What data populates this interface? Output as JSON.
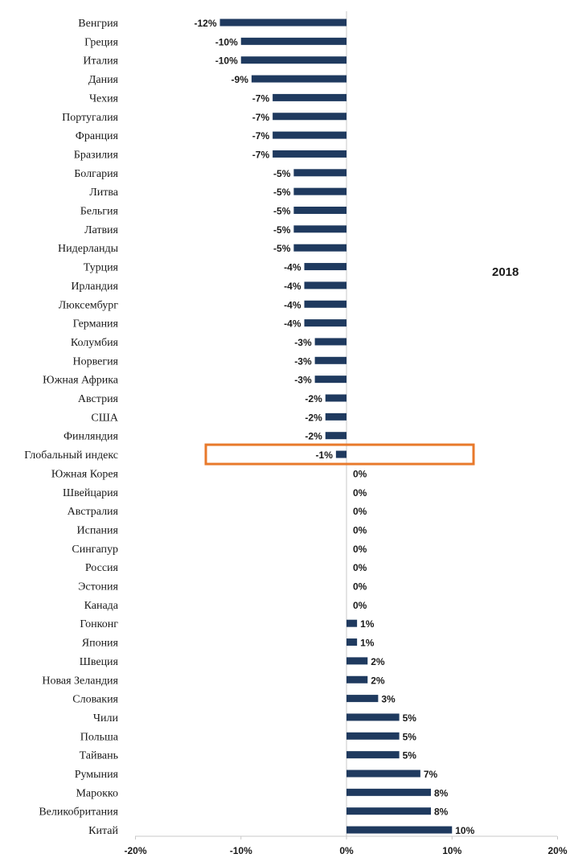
{
  "colors": {
    "bar": "#1f3a5f",
    "highlight_border": "#e8792b",
    "axis": "#c8c8c8",
    "background": "#ffffff"
  },
  "chart_data": {
    "type": "bar",
    "orientation": "horizontal",
    "title": "2018",
    "xlim": [
      -20,
      20
    ],
    "x_ticks": [
      -20,
      -10,
      0,
      10,
      20
    ],
    "x_tick_labels": [
      "-20%",
      "-10%",
      "0%",
      "10%",
      "20%"
    ],
    "highlighted_category": "Глобальный индекс",
    "categories": [
      "Венгрия",
      "Греция",
      "Италия",
      "Дания",
      "Чехия",
      "Португалия",
      "Франция",
      "Бразилия",
      "Болгария",
      "Литва",
      "Бельгия",
      "Латвия",
      "Нидерланды",
      "Турция",
      "Ирландия",
      "Люксембург",
      "Германия",
      "Колумбия",
      "Норвегия",
      "Южная Африка",
      "Австрия",
      "США",
      "Финляндия",
      "Глобальный индекс",
      "Южная Корея",
      "Швейцария",
      "Австралия",
      "Испания",
      "Сингапур",
      "Россия",
      "Эстония",
      "Канада",
      "Гонконг",
      "Япония",
      "Швеция",
      "Новая Зеландия",
      "Словакия",
      "Чили",
      "Польша",
      "Тайвань",
      "Румыния",
      "Марокко",
      "Великобритания",
      "Китай"
    ],
    "values": [
      -12,
      -10,
      -10,
      -9,
      -7,
      -7,
      -7,
      -7,
      -5,
      -5,
      -5,
      -5,
      -5,
      -4,
      -4,
      -4,
      -4,
      -3,
      -3,
      -3,
      -2,
      -2,
      -2,
      -1,
      0,
      0,
      0,
      0,
      0,
      0,
      0,
      0,
      1,
      1,
      2,
      2,
      3,
      5,
      5,
      5,
      7,
      8,
      8,
      10
    ],
    "value_labels": [
      "-12%",
      "-10%",
      "-10%",
      "-9%",
      "-7%",
      "-7%",
      "-7%",
      "-7%",
      "-5%",
      "-5%",
      "-5%",
      "-5%",
      "-5%",
      "-4%",
      "-4%",
      "-4%",
      "-4%",
      "-3%",
      "-3%",
      "-3%",
      "-2%",
      "-2%",
      "-2%",
      "-1%",
      "0%",
      "0%",
      "0%",
      "0%",
      "0%",
      "0%",
      "0%",
      "0%",
      "1%",
      "1%",
      "2%",
      "2%",
      "3%",
      "5%",
      "5%",
      "5%",
      "7%",
      "8%",
      "8%",
      "10%"
    ]
  }
}
